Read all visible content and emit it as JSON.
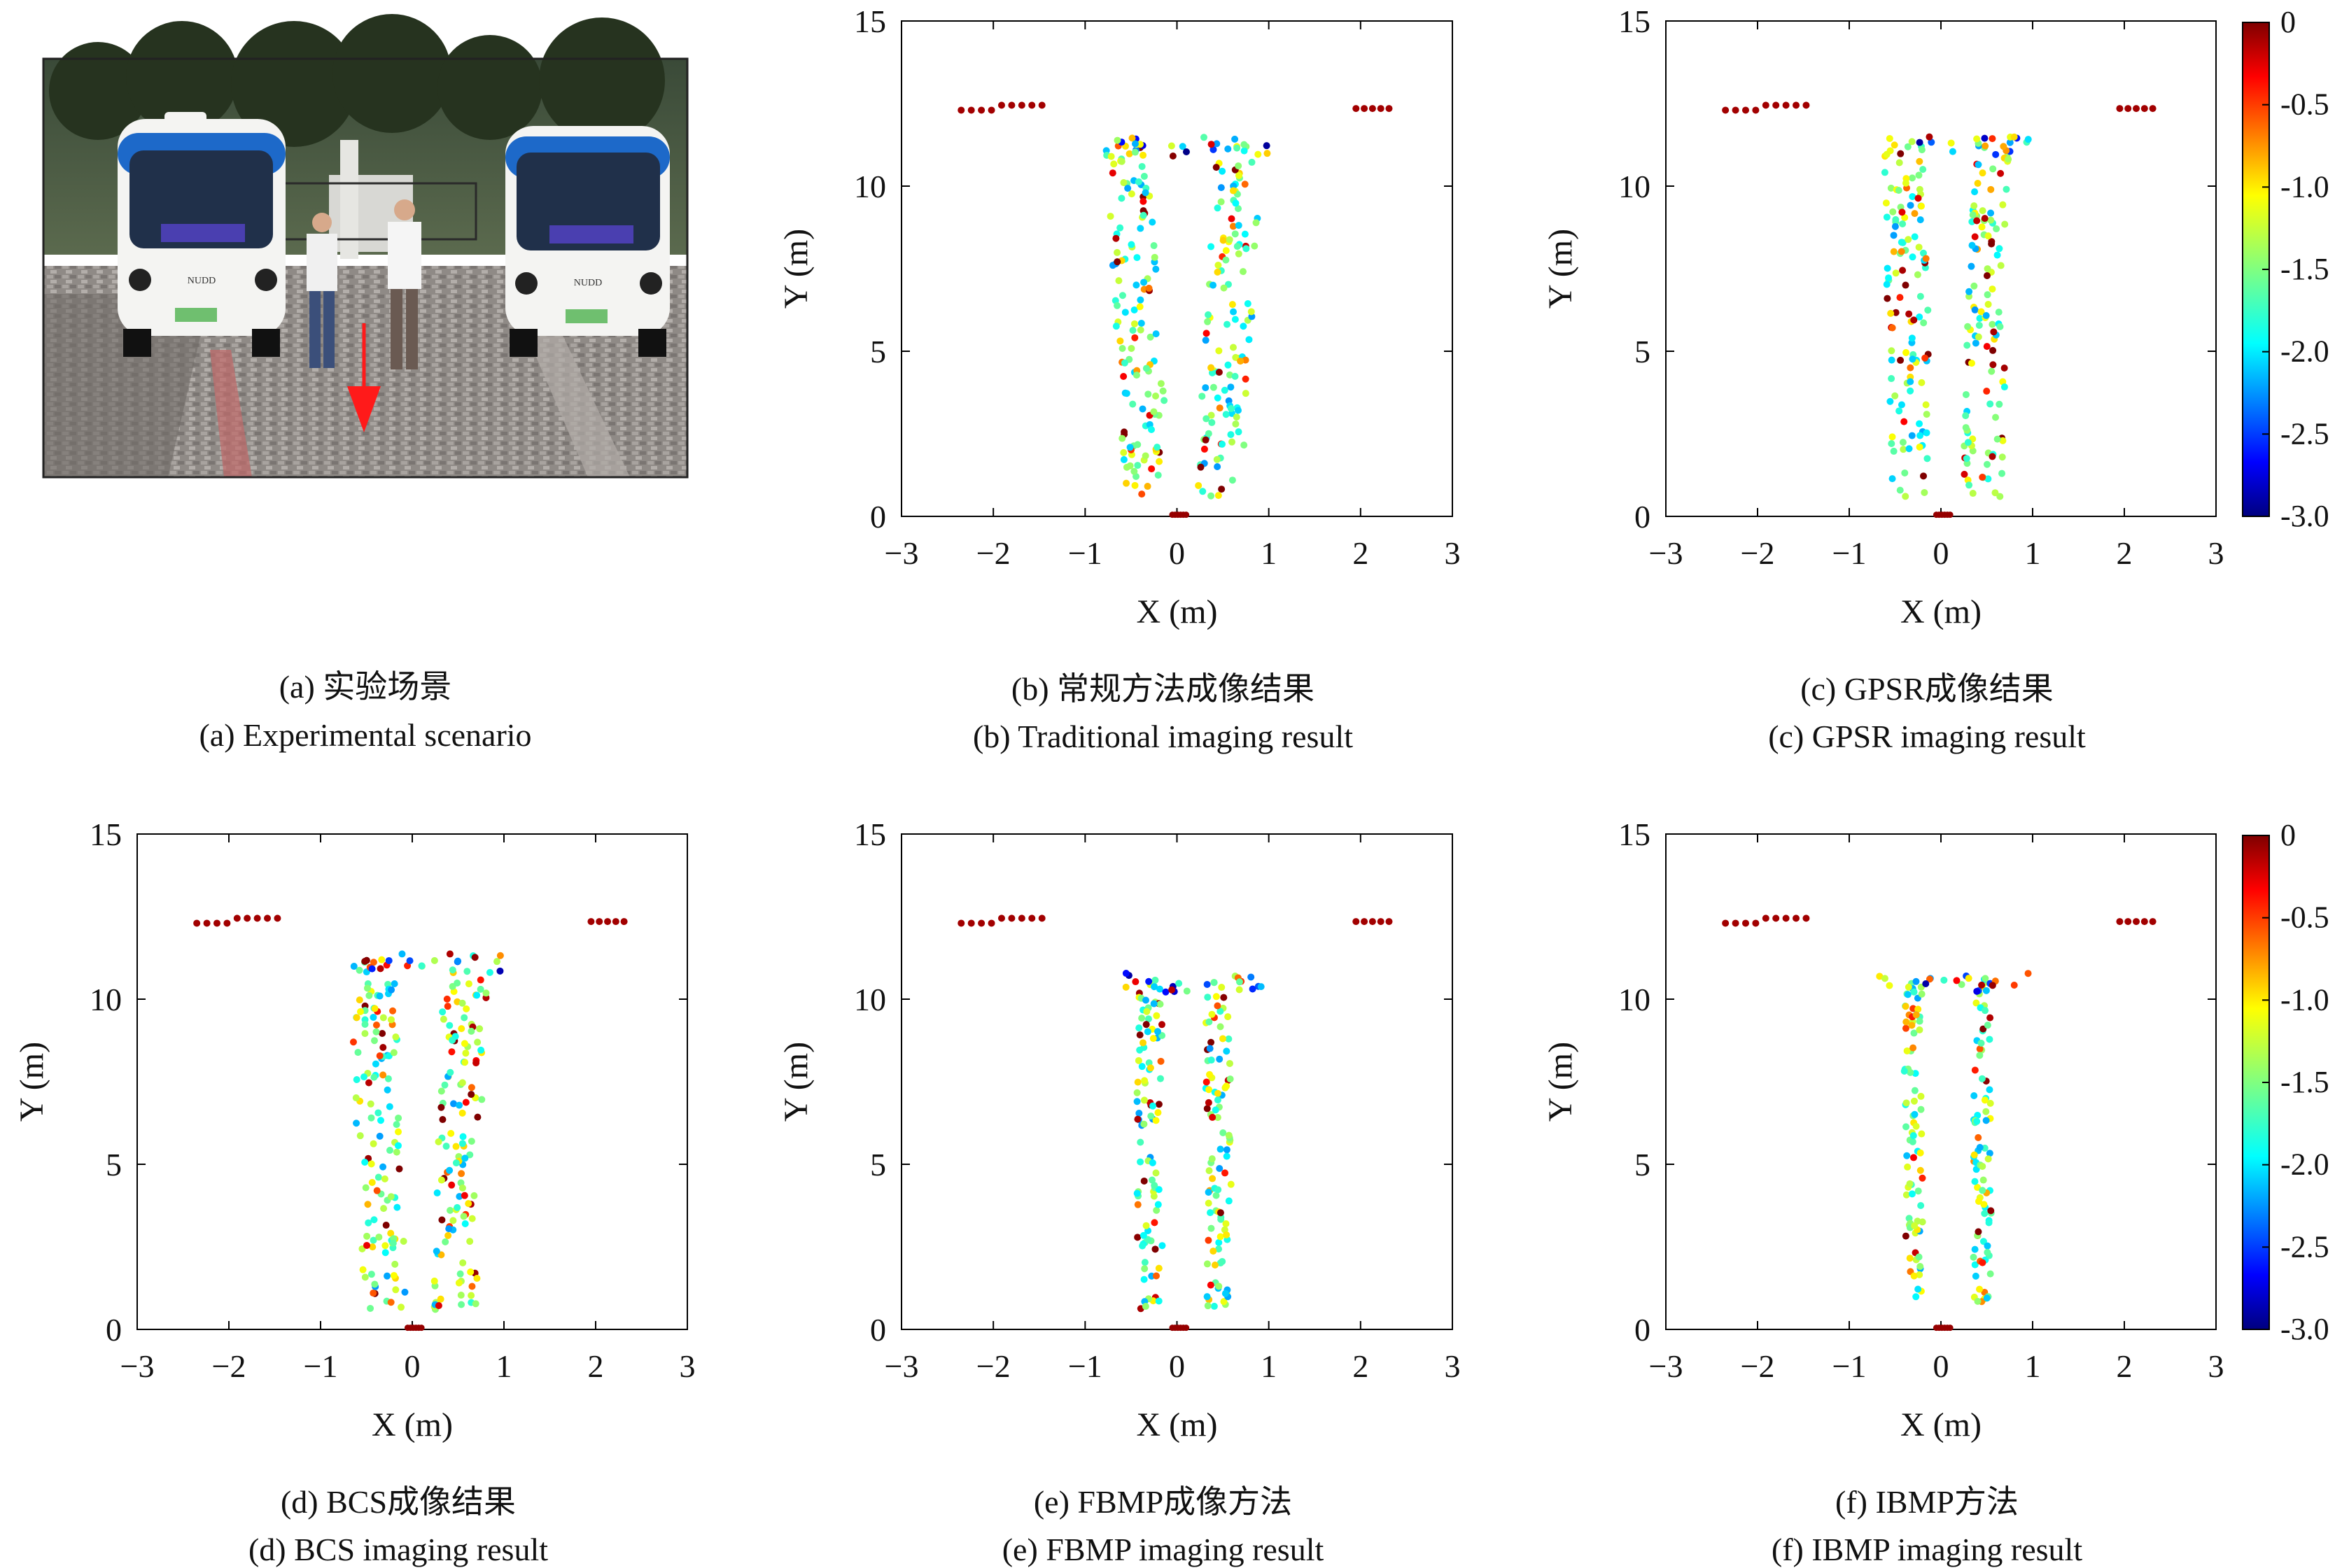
{
  "figure": {
    "photo": {
      "description_labels": [],
      "caption_cn": "(a) 实验场景",
      "caption_en": "(a) Experimental scenario",
      "bus_plate_text": "NUDD"
    },
    "colors": {
      "frame": "#000000",
      "arrow": "#ff1a1a",
      "background": "#ffffff"
    },
    "colorbar": {
      "ticks": [
        "0",
        "-0.5",
        "-1.0",
        "-1.5",
        "-2.0",
        "-2.5",
        "-3.0"
      ],
      "range": [
        -3.0,
        0
      ],
      "colormap": "jet"
    }
  },
  "chart_data": [
    {
      "id": "b",
      "type": "scatter",
      "caption_cn": "(b) 常规方法成像结果",
      "caption_en": "(b) Traditional imaging result",
      "xlabel": "X (m)",
      "ylabel": "Y (m)",
      "xlim": [
        -3,
        3
      ],
      "ylim": [
        0,
        15
      ],
      "xticks": [
        "-3",
        "-2",
        "-1",
        "0",
        "1",
        "2",
        "3"
      ],
      "yticks": [
        "0",
        "5",
        "10",
        "15"
      ],
      "colorbar": false,
      "model": {
        "spread": 0.25,
        "lean": 0.1,
        "topY": 11.3,
        "dots": 260
      }
    },
    {
      "id": "c",
      "type": "scatter",
      "caption_cn": "(c) GPSR成像结果",
      "caption_en": "(c) GPSR imaging result",
      "xlabel": "X (m)",
      "ylabel": "Y (m)",
      "xlim": [
        -3,
        3
      ],
      "ylim": [
        0,
        15
      ],
      "xticks": [
        "-3",
        "-2",
        "-1",
        "0",
        "1",
        "2",
        "3"
      ],
      "yticks": [
        "0",
        "5",
        "10",
        "15"
      ],
      "colorbar": true,
      "model": {
        "spread": 0.22,
        "lean": 0.05,
        "topY": 11.3,
        "dots": 240
      }
    },
    {
      "id": "d",
      "type": "scatter",
      "caption_cn": "(d) BCS成像结果",
      "caption_en": "(d) BCS imaging result",
      "xlabel": "X (m)",
      "ylabel": "Y (m)",
      "xlim": [
        -3,
        3
      ],
      "ylim": [
        0,
        15
      ],
      "xticks": [
        "-3",
        "-2",
        "-1",
        "0",
        "1",
        "2",
        "3"
      ],
      "yticks": [
        "0",
        "5",
        "10",
        "15"
      ],
      "colorbar": false,
      "model": {
        "spread": 0.24,
        "lean": 0.06,
        "topY": 11.2,
        "dots": 260
      }
    },
    {
      "id": "e",
      "type": "scatter",
      "caption_cn": "(e) FBMP成像方法",
      "caption_en": "(e) FBMP imaging result",
      "xlabel": "X (m)",
      "ylabel": "Y (m)",
      "xlim": [
        -3,
        3
      ],
      "ylim": [
        0,
        15
      ],
      "xticks": [
        "-3",
        "-2",
        "-1",
        "0",
        "1",
        "2",
        "3"
      ],
      "yticks": [
        "0",
        "5",
        "10",
        "15"
      ],
      "colorbar": false,
      "model": {
        "spread": 0.14,
        "lean": 0.0,
        "topY": 10.6,
        "dots": 200
      }
    },
    {
      "id": "f",
      "type": "scatter",
      "caption_cn": "(f) IBMP方法",
      "caption_en": "(f) IBMP imaging result",
      "xlabel": "X (m)",
      "ylabel": "Y (m)",
      "xlim": [
        -3,
        3
      ],
      "ylim": [
        0,
        15
      ],
      "xticks": [
        "-3",
        "-2",
        "-1",
        "0",
        "1",
        "2",
        "3"
      ],
      "yticks": [
        "0",
        "5",
        "10",
        "15"
      ],
      "colorbar": true,
      "model": {
        "spread": 0.1,
        "lean": 0.0,
        "topY": 10.6,
        "dots": 170
      }
    }
  ]
}
